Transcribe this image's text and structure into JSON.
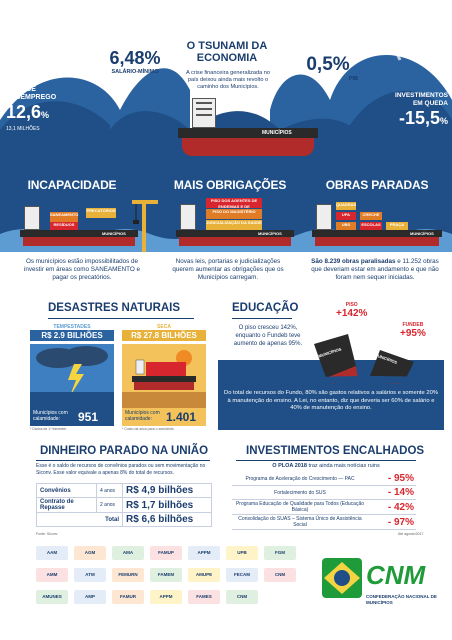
{
  "hero": {
    "title_l1": "O TSUNAMI DA",
    "title_l2": "ECONOMIA",
    "subtitle": "A crise financeira generalizada no país deixou ainda mais revolto o caminho dos Municípios.",
    "salario": {
      "value": "6,48%",
      "label": "SALÁRIO-MÍNIMO"
    },
    "pib": {
      "value": "0,5%",
      "label": "PIB"
    },
    "desemprego": {
      "label_l1": "TAXA DE",
      "label_l2": "DESEMPREGO",
      "value": "12,6",
      "unit": "%",
      "note": "13,1 MILHÕES"
    },
    "investimentos": {
      "label_l1": "INVESTIMENTOS",
      "label_l2": "EM QUEDA",
      "value": "-15,5",
      "unit": "%"
    },
    "ship_label": "MUNICÍPIOS"
  },
  "panels": [
    {
      "title": "INCAPACIDADE",
      "caption": "Os municípios estão impossibilitados de investir em áreas como SANEAMENTO e pagar os precatórios.",
      "containers": [
        "SANEAMENTO",
        "PRECATÓRIOS",
        "RESÍDUOS"
      ],
      "ship": "MUNICÍPIOS"
    },
    {
      "title": "MAIS OBRIGAÇÕES",
      "caption": "Novas leis, portarias e judicializações querem aumentar as obrigações que os Municípios carregam.",
      "containers": [
        "PISO DOS AGENTES DE ENDEMIAS E DE COMUNITÁRIOS",
        "PISO DO MAGISTÉRIO",
        "JUDICIALIZAÇÃO DA SAÚDE"
      ],
      "ship": "MUNICÍPIOS"
    },
    {
      "title": "OBRAS PARADAS",
      "caption_bold": "São 8.239 obras paralisadas",
      "caption_rest": "e 11.252 obras que deveriam estar em andamento e que não foram nem sequer iniciadas.",
      "containers": [
        "QUADRAS",
        "UPA",
        "CRECHE",
        "UBS",
        "ESCOLAS",
        "PRAÇA"
      ],
      "ship": "MUNICÍPIOS"
    }
  ],
  "desastres": {
    "title": "DESASTRES NATURAIS",
    "temp": {
      "label": "TEMPESTADES",
      "value": "R$ 2.9 BILHÕES",
      "muni_label": "Municípios com calamidade:",
      "count": "951",
      "note": "* Dados de 1º trimestre."
    },
    "seca": {
      "label": "SECA",
      "value": "R$ 27.8 BILHÕES",
      "muni_label": "Municípios com calamidade:",
      "count": "1.401",
      "note": "* Custo da seca para o semiárido"
    }
  },
  "educacao": {
    "title": "EDUCAÇÃO",
    "text": "O piso cresceu 142%, enquanto o Fundeb teve aumento de apenas 95%.",
    "piso_label": "PISO",
    "piso_value": "+142%",
    "fundeb_label": "FUNDEB",
    "fundeb_value": "+95%",
    "ship1": "MUNICÍPIOS",
    "ship2": "MUNICÍPIOS",
    "bottom": "Do total de recursos do Fundo, 80% são gastos relativos a salários e somente 20% à manutenção do ensino. A Lei, no entanto, diz que deveria ser 60% de salário e 40% de manutenção do ensino."
  },
  "dinheiro": {
    "title": "DINHEIRO PARADO NA UNIÃO",
    "intro": "Esse é o saldo de recursos de convênios parados ou sem movimentação no Siconv. Esse valor equivale a apenas 8% do total de recursos.",
    "rows": [
      {
        "label": "Convênios",
        "years": "4 anos",
        "value": "R$ 4,9 bilhões"
      },
      {
        "label": "Contrato de Repasse",
        "years": "2 anos",
        "value": "R$ 1,7 bilhões"
      },
      {
        "label": "Total",
        "years": "",
        "value": "R$ 6,6 bilhões"
      }
    ],
    "source": "Fonte: Siconv"
  },
  "investimentos": {
    "title": "INVESTIMENTOS ENCALHADOS",
    "intro_bold": "O PLOA 2018",
    "intro_rest": "traz ainda mais notícias ruins",
    "rows": [
      {
        "label": "Programa de Aceleração do Crescimento — PAC",
        "value": "- 95%"
      },
      {
        "label": "Fortalecimento do SUS",
        "value": "- 14%"
      },
      {
        "label": "Programa Educação de Qualidade para Todos (Educação Básica)",
        "value": "- 42%"
      },
      {
        "label": "Consolidação do SUAS – Sistema Único de Assistência Social",
        "value": "- 97%"
      }
    ],
    "note": "Até agosto/2017."
  },
  "logos": [
    "AAM",
    "AGM",
    "AMA",
    "FAMUP",
    "APPM",
    "UPB",
    "FGM",
    "AMM",
    "ATM",
    "FEMURN",
    "FAMEM",
    "AMUPE",
    "FECAM",
    "CNM",
    "AMUNES",
    "AMP",
    "FAMUR",
    "APPM",
    "FAMES",
    "CNM"
  ],
  "cnm": {
    "name": "CNM",
    "full": "CONFEDERAÇÃO NACIONAL DE MUNICÍPIOS"
  }
}
